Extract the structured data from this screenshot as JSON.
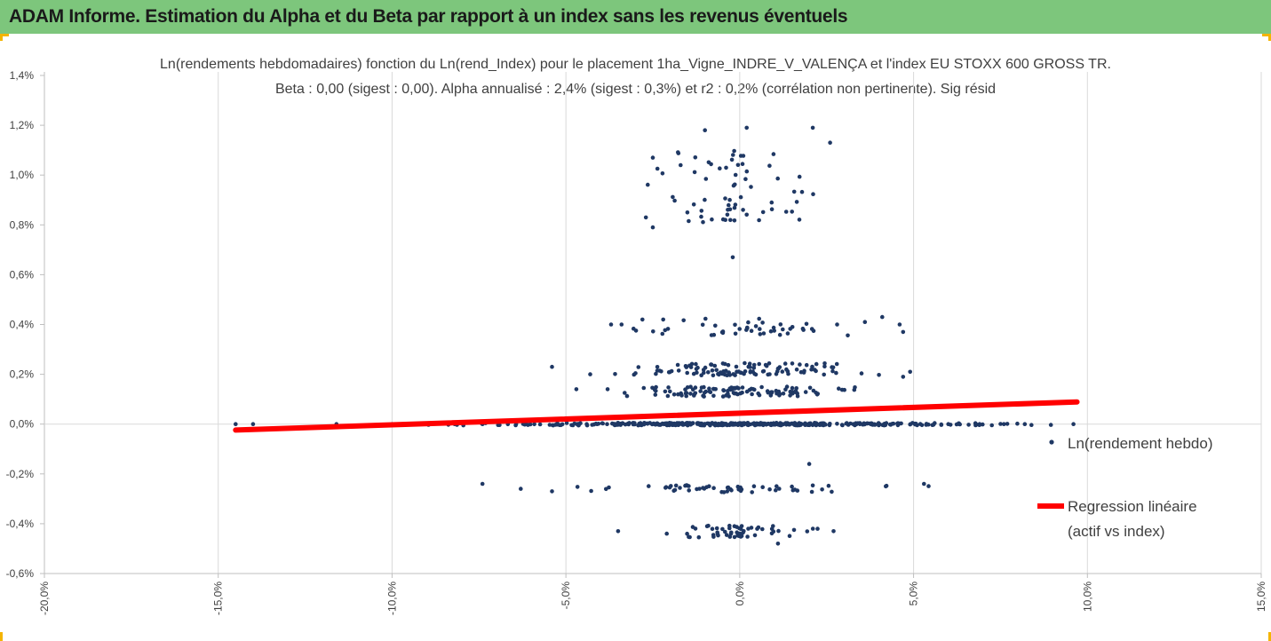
{
  "header": {
    "title": "ADAM Informe. Estimation du Alpha et du Beta par rapport à un index sans les revenus éventuels",
    "background": "#7dc67c"
  },
  "chart_data": {
    "type": "scatter",
    "title": "Ln(rendements hebdomadaires) fonction du Ln(rend_Index) pour le placement 1ha_Vigne_INDRE_V_VALENÇA et l'index EU STOXX 600 GROSS TR.",
    "subtitle": "Beta : 0,00 (sigest : 0,00). Alpha annualisé : 2,4% (sigest : 0,3%) et r2 : 0,2% (corrélation non pertinente). Sig résid",
    "xlim": [
      -20,
      15
    ],
    "ylim": [
      -0.6,
      1.4
    ],
    "x_ticks": [
      "-20,0%",
      "-15,0%",
      "-10,0%",
      "-5,0%",
      "0,0%",
      "5,0%",
      "10,0%",
      "15,0%"
    ],
    "y_ticks": [
      "-0,6%",
      "-0,4%",
      "-0,2%",
      "0,0%",
      "0,2%",
      "0,4%",
      "0,6%",
      "0,8%",
      "1,0%",
      "1,2%",
      "1,4%"
    ],
    "grid": "vertical",
    "legend_position": "right",
    "series": [
      {
        "name": "Ln(rendement hebdo)",
        "color": "#1f3864",
        "seed": 7,
        "clusters": [
          {
            "y_center": 0.0,
            "y_spread": 0.005,
            "x_sd": 3.2,
            "count": 420
          },
          {
            "y_center": 0.13,
            "y_spread": 0.02,
            "x_sd": 1.6,
            "count": 110
          },
          {
            "y_center": 0.22,
            "y_spread": 0.025,
            "x_sd": 1.6,
            "count": 110
          },
          {
            "y_center": 0.39,
            "y_spread": 0.035,
            "x_sd": 1.5,
            "count": 45
          },
          {
            "y_center": 0.95,
            "y_spread": 0.15,
            "x_sd": 1.1,
            "count": 65
          },
          {
            "y_center": -0.26,
            "y_spread": 0.015,
            "x_sd": 2.0,
            "count": 55
          },
          {
            "y_center": -0.43,
            "y_spread": 0.025,
            "x_sd": 1.0,
            "count": 55
          }
        ],
        "points": [
          [
            -14.5,
            0.0
          ],
          [
            -14.0,
            0.0
          ],
          [
            -11.6,
            0.0
          ],
          [
            -10.0,
            0.0
          ],
          [
            -9.3,
            0.0
          ],
          [
            -8.2,
            0.0
          ],
          [
            -7.4,
            0.0
          ],
          [
            -6.2,
            0.0
          ],
          [
            -5.4,
            0.23
          ],
          [
            -4.7,
            0.14
          ],
          [
            -4.3,
            0.2
          ],
          [
            -3.8,
            0.14
          ],
          [
            -3.7,
            0.4
          ],
          [
            -3.4,
            0.4
          ],
          [
            -2.8,
            0.42
          ],
          [
            -2.2,
            0.42
          ],
          [
            -2.5,
            1.07
          ],
          [
            -2.7,
            0.83
          ],
          [
            -2.5,
            0.79
          ],
          [
            -1.7,
            1.04
          ],
          [
            -1.0,
            1.18
          ],
          [
            0.2,
            1.19
          ],
          [
            2.1,
            1.19
          ],
          [
            2.6,
            1.13
          ],
          [
            -0.2,
            0.67
          ],
          [
            2.8,
            0.4
          ],
          [
            3.6,
            0.41
          ],
          [
            4.1,
            0.43
          ],
          [
            4.6,
            0.4
          ],
          [
            4.7,
            0.37
          ],
          [
            4.9,
            0.21
          ],
          [
            4.7,
            0.19
          ],
          [
            -7.4,
            -0.24
          ],
          [
            -6.3,
            -0.26
          ],
          [
            -5.4,
            -0.27
          ],
          [
            5.3,
            -0.24
          ],
          [
            4.2,
            -0.25
          ],
          [
            -3.5,
            -0.43
          ],
          [
            -2.1,
            -0.44
          ],
          [
            2.7,
            -0.43
          ],
          [
            2.0,
            -0.16
          ],
          [
            1.1,
            -0.48
          ],
          [
            6.0,
            0.0
          ],
          [
            6.9,
            0.0
          ],
          [
            7.6,
            0.0
          ],
          [
            8.2,
            0.0
          ],
          [
            9.6,
            0.0
          ]
        ]
      },
      {
        "name": "Regression linéaire (actif vs index)",
        "legend_lines": [
          "Regression linéaire",
          "(actif vs index)"
        ],
        "color": "#ff0000",
        "type": "line",
        "x": [
          -14.5,
          9.7
        ],
        "y": [
          -0.024,
          0.089
        ]
      }
    ]
  }
}
